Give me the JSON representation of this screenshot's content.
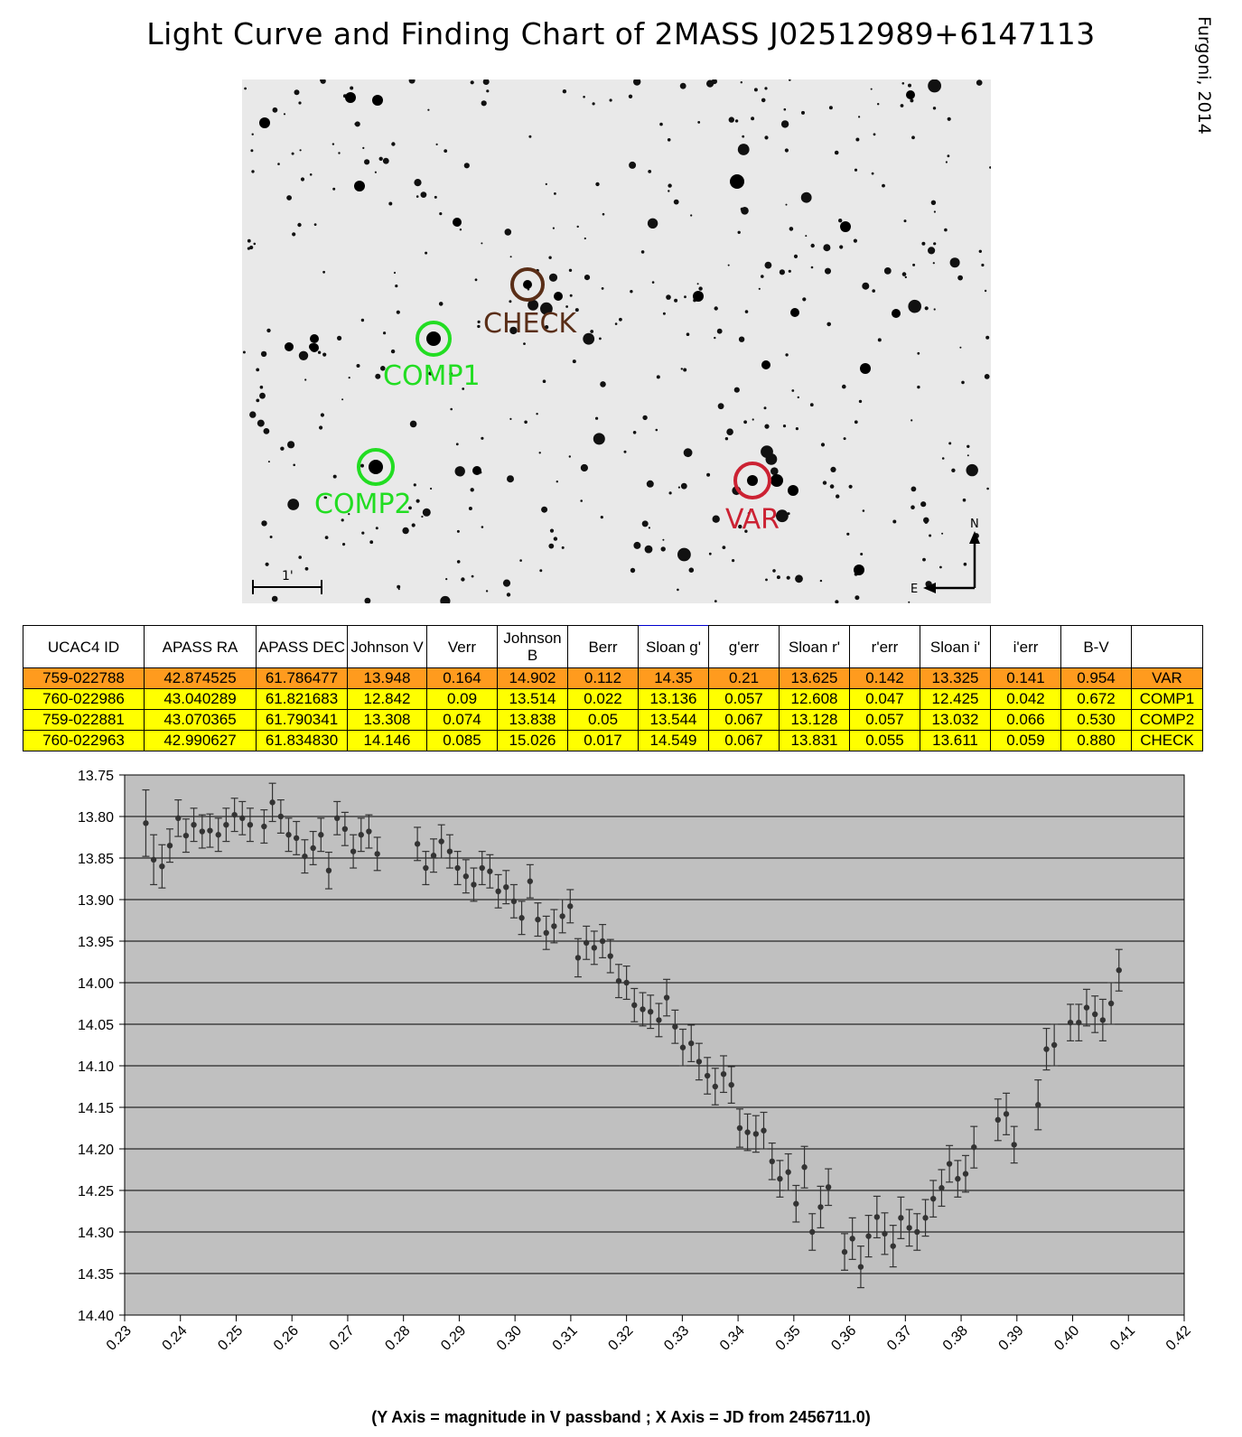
{
  "title": "Light Curve and Finding Chart of 2MASS J02512989+6147113",
  "author": "Furgoni, 2014",
  "finding_chart": {
    "markers": [
      {
        "label": "CHECK",
        "color": "#5a2e17"
      },
      {
        "label": "COMP1",
        "color": "#22dd22"
      },
      {
        "label": "COMP2",
        "color": "#22dd22"
      },
      {
        "label": "VAR",
        "color": "#cc2233"
      }
    ],
    "scale_label": "1'",
    "north_label": "N",
    "east_label": "E"
  },
  "table": {
    "headers": [
      "UCAC4 ID",
      "APASS RA",
      "APASS DEC",
      "Johnson V",
      "Verr",
      "Johnson B",
      "Berr",
      "Sloan g'",
      "g'err",
      "Sloan r'",
      "r'err",
      "Sloan i'",
      "i'err",
      "B-V",
      ""
    ],
    "rows": [
      [
        "759-022788",
        "42.874525",
        "61.786477",
        "13.948",
        "0.164",
        "14.902",
        "0.112",
        "14.35",
        "0.21",
        "13.625",
        "0.142",
        "13.325",
        "0.141",
        "0.954",
        "VAR"
      ],
      [
        "760-022986",
        "43.040289",
        "61.821683",
        "12.842",
        "0.09",
        "13.514",
        "0.022",
        "13.136",
        "0.057",
        "12.608",
        "0.047",
        "12.425",
        "0.042",
        "0.672",
        "COMP1"
      ],
      [
        "759-022881",
        "43.070365",
        "61.790341",
        "13.308",
        "0.074",
        "13.838",
        "0.05",
        "13.544",
        "0.067",
        "13.128",
        "0.057",
        "13.032",
        "0.066",
        "0.530",
        "COMP2"
      ],
      [
        "760-022963",
        "42.990627",
        "61.834830",
        "14.146",
        "0.085",
        "15.026",
        "0.017",
        "14.549",
        "0.067",
        "13.831",
        "0.055",
        "13.611",
        "0.059",
        "0.880",
        "CHECK"
      ]
    ]
  },
  "chart_data": {
    "type": "scatter",
    "title": "",
    "xlabel": "(Y Axis = magnitude in V passband ; X Axis = JD from 2456711.0)",
    "ylabel": "",
    "xlim": [
      0.23,
      0.42
    ],
    "ylim": [
      13.75,
      14.4
    ],
    "y_inverted": true,
    "grid": "horizontal",
    "plot_background": "#c0c0c0",
    "marker_color": "#333333",
    "x_ticks": [
      "0.23",
      "0.24",
      "0.25",
      "0.26",
      "0.27",
      "0.28",
      "0.29",
      "0.30",
      "0.31",
      "0.32",
      "0.33",
      "0.34",
      "0.35",
      "0.36",
      "0.37",
      "0.38",
      "0.39",
      "0.40",
      "0.41",
      "0.42"
    ],
    "y_ticks": [
      "13.75",
      "13.80",
      "13.85",
      "13.90",
      "13.95",
      "14.00",
      "14.05",
      "14.10",
      "14.15",
      "14.20",
      "14.25",
      "14.30",
      "14.35",
      "14.40"
    ],
    "points": [
      {
        "x": 0.2338,
        "y": 13.808,
        "e": 0.04
      },
      {
        "x": 0.2352,
        "y": 13.852,
        "e": 0.03
      },
      {
        "x": 0.2367,
        "y": 13.86,
        "e": 0.026
      },
      {
        "x": 0.2381,
        "y": 13.835,
        "e": 0.02
      },
      {
        "x": 0.2396,
        "y": 13.802,
        "e": 0.022
      },
      {
        "x": 0.241,
        "y": 13.823,
        "e": 0.02
      },
      {
        "x": 0.2424,
        "y": 13.81,
        "e": 0.02
      },
      {
        "x": 0.2439,
        "y": 13.818,
        "e": 0.02
      },
      {
        "x": 0.2453,
        "y": 13.817,
        "e": 0.02
      },
      {
        "x": 0.2468,
        "y": 13.822,
        "e": 0.02
      },
      {
        "x": 0.2482,
        "y": 13.81,
        "e": 0.02
      },
      {
        "x": 0.2497,
        "y": 13.798,
        "e": 0.02
      },
      {
        "x": 0.2511,
        "y": 13.802,
        "e": 0.02
      },
      {
        "x": 0.2525,
        "y": 13.81,
        "e": 0.02
      },
      {
        "x": 0.255,
        "y": 13.812,
        "e": 0.02
      },
      {
        "x": 0.2565,
        "y": 13.783,
        "e": 0.023
      },
      {
        "x": 0.258,
        "y": 13.8,
        "e": 0.02
      },
      {
        "x": 0.2594,
        "y": 13.822,
        "e": 0.02
      },
      {
        "x": 0.2608,
        "y": 13.826,
        "e": 0.02
      },
      {
        "x": 0.2623,
        "y": 13.848,
        "e": 0.02
      },
      {
        "x": 0.2638,
        "y": 13.838,
        "e": 0.02
      },
      {
        "x": 0.2652,
        "y": 13.822,
        "e": 0.02
      },
      {
        "x": 0.2666,
        "y": 13.865,
        "e": 0.022
      },
      {
        "x": 0.2681,
        "y": 13.802,
        "e": 0.02
      },
      {
        "x": 0.2695,
        "y": 13.815,
        "e": 0.02
      },
      {
        "x": 0.271,
        "y": 13.842,
        "e": 0.02
      },
      {
        "x": 0.2724,
        "y": 13.822,
        "e": 0.02
      },
      {
        "x": 0.2738,
        "y": 13.818,
        "e": 0.02
      },
      {
        "x": 0.2753,
        "y": 13.845,
        "e": 0.02
      },
      {
        "x": 0.2825,
        "y": 13.833,
        "e": 0.02
      },
      {
        "x": 0.284,
        "y": 13.862,
        "e": 0.02
      },
      {
        "x": 0.2854,
        "y": 13.847,
        "e": 0.02
      },
      {
        "x": 0.2868,
        "y": 13.83,
        "e": 0.02
      },
      {
        "x": 0.2883,
        "y": 13.842,
        "e": 0.02
      },
      {
        "x": 0.2897,
        "y": 13.862,
        "e": 0.02
      },
      {
        "x": 0.2912,
        "y": 13.872,
        "e": 0.02
      },
      {
        "x": 0.2926,
        "y": 13.882,
        "e": 0.02
      },
      {
        "x": 0.2941,
        "y": 13.862,
        "e": 0.02
      },
      {
        "x": 0.2955,
        "y": 13.866,
        "e": 0.02
      },
      {
        "x": 0.297,
        "y": 13.89,
        "e": 0.02
      },
      {
        "x": 0.2984,
        "y": 13.885,
        "e": 0.02
      },
      {
        "x": 0.2998,
        "y": 13.902,
        "e": 0.02
      },
      {
        "x": 0.3012,
        "y": 13.922,
        "e": 0.02
      },
      {
        "x": 0.3027,
        "y": 13.878,
        "e": 0.02
      },
      {
        "x": 0.3041,
        "y": 13.924,
        "e": 0.02
      },
      {
        "x": 0.3056,
        "y": 13.94,
        "e": 0.02
      },
      {
        "x": 0.307,
        "y": 13.932,
        "e": 0.02
      },
      {
        "x": 0.3085,
        "y": 13.92,
        "e": 0.02
      },
      {
        "x": 0.3099,
        "y": 13.908,
        "e": 0.02
      },
      {
        "x": 0.3113,
        "y": 13.97,
        "e": 0.023
      },
      {
        "x": 0.3128,
        "y": 13.952,
        "e": 0.02
      },
      {
        "x": 0.3142,
        "y": 13.958,
        "e": 0.02
      },
      {
        "x": 0.3157,
        "y": 13.95,
        "e": 0.02
      },
      {
        "x": 0.3171,
        "y": 13.968,
        "e": 0.02
      },
      {
        "x": 0.3186,
        "y": 13.998,
        "e": 0.02
      },
      {
        "x": 0.32,
        "y": 14.0,
        "e": 0.02
      },
      {
        "x": 0.3214,
        "y": 14.027,
        "e": 0.02
      },
      {
        "x": 0.3229,
        "y": 14.032,
        "e": 0.02
      },
      {
        "x": 0.3243,
        "y": 14.035,
        "e": 0.02
      },
      {
        "x": 0.3258,
        "y": 14.045,
        "e": 0.02
      },
      {
        "x": 0.3272,
        "y": 14.018,
        "e": 0.022
      },
      {
        "x": 0.3287,
        "y": 14.053,
        "e": 0.02
      },
      {
        "x": 0.3301,
        "y": 14.078,
        "e": 0.022
      },
      {
        "x": 0.3316,
        "y": 14.073,
        "e": 0.022
      },
      {
        "x": 0.333,
        "y": 14.095,
        "e": 0.022
      },
      {
        "x": 0.3345,
        "y": 14.112,
        "e": 0.022
      },
      {
        "x": 0.3359,
        "y": 14.125,
        "e": 0.022
      },
      {
        "x": 0.3374,
        "y": 14.11,
        "e": 0.022
      },
      {
        "x": 0.3388,
        "y": 14.123,
        "e": 0.022
      },
      {
        "x": 0.3403,
        "y": 14.175,
        "e": 0.023
      },
      {
        "x": 0.3417,
        "y": 14.18,
        "e": 0.022
      },
      {
        "x": 0.3432,
        "y": 14.182,
        "e": 0.022
      },
      {
        "x": 0.3446,
        "y": 14.178,
        "e": 0.022
      },
      {
        "x": 0.3461,
        "y": 14.215,
        "e": 0.022
      },
      {
        "x": 0.3475,
        "y": 14.236,
        "e": 0.022
      },
      {
        "x": 0.349,
        "y": 14.228,
        "e": 0.022
      },
      {
        "x": 0.3504,
        "y": 14.266,
        "e": 0.022
      },
      {
        "x": 0.3519,
        "y": 14.222,
        "e": 0.025
      },
      {
        "x": 0.3533,
        "y": 14.3,
        "e": 0.022
      },
      {
        "x": 0.3548,
        "y": 14.27,
        "e": 0.025
      },
      {
        "x": 0.3562,
        "y": 14.246,
        "e": 0.022
      },
      {
        "x": 0.3591,
        "y": 14.324,
        "e": 0.022
      },
      {
        "x": 0.3605,
        "y": 14.308,
        "e": 0.025
      },
      {
        "x": 0.362,
        "y": 14.342,
        "e": 0.025
      },
      {
        "x": 0.3634,
        "y": 14.305,
        "e": 0.025
      },
      {
        "x": 0.3649,
        "y": 14.282,
        "e": 0.025
      },
      {
        "x": 0.3663,
        "y": 14.302,
        "e": 0.025
      },
      {
        "x": 0.3678,
        "y": 14.317,
        "e": 0.025
      },
      {
        "x": 0.3692,
        "y": 14.283,
        "e": 0.025
      },
      {
        "x": 0.3707,
        "y": 14.295,
        "e": 0.022
      },
      {
        "x": 0.3721,
        "y": 14.3,
        "e": 0.022
      },
      {
        "x": 0.3736,
        "y": 14.283,
        "e": 0.022
      },
      {
        "x": 0.375,
        "y": 14.26,
        "e": 0.022
      },
      {
        "x": 0.3765,
        "y": 14.247,
        "e": 0.022
      },
      {
        "x": 0.3779,
        "y": 14.218,
        "e": 0.022
      },
      {
        "x": 0.3794,
        "y": 14.236,
        "e": 0.022
      },
      {
        "x": 0.3808,
        "y": 14.23,
        "e": 0.022
      },
      {
        "x": 0.3823,
        "y": 14.198,
        "e": 0.025
      },
      {
        "x": 0.3866,
        "y": 14.165,
        "e": 0.025
      },
      {
        "x": 0.3881,
        "y": 14.158,
        "e": 0.025
      },
      {
        "x": 0.3895,
        "y": 14.195,
        "e": 0.022
      },
      {
        "x": 0.3938,
        "y": 14.147,
        "e": 0.03
      },
      {
        "x": 0.3953,
        "y": 14.08,
        "e": 0.025
      },
      {
        "x": 0.3967,
        "y": 14.075,
        "e": 0.025
      },
      {
        "x": 0.3996,
        "y": 14.048,
        "e": 0.022
      },
      {
        "x": 0.4011,
        "y": 14.048,
        "e": 0.022
      },
      {
        "x": 0.4025,
        "y": 14.03,
        "e": 0.022
      },
      {
        "x": 0.404,
        "y": 14.038,
        "e": 0.022
      },
      {
        "x": 0.4054,
        "y": 14.045,
        "e": 0.025
      },
      {
        "x": 0.4069,
        "y": 14.025,
        "e": 0.025
      },
      {
        "x": 0.4083,
        "y": 13.985,
        "e": 0.025
      }
    ]
  }
}
